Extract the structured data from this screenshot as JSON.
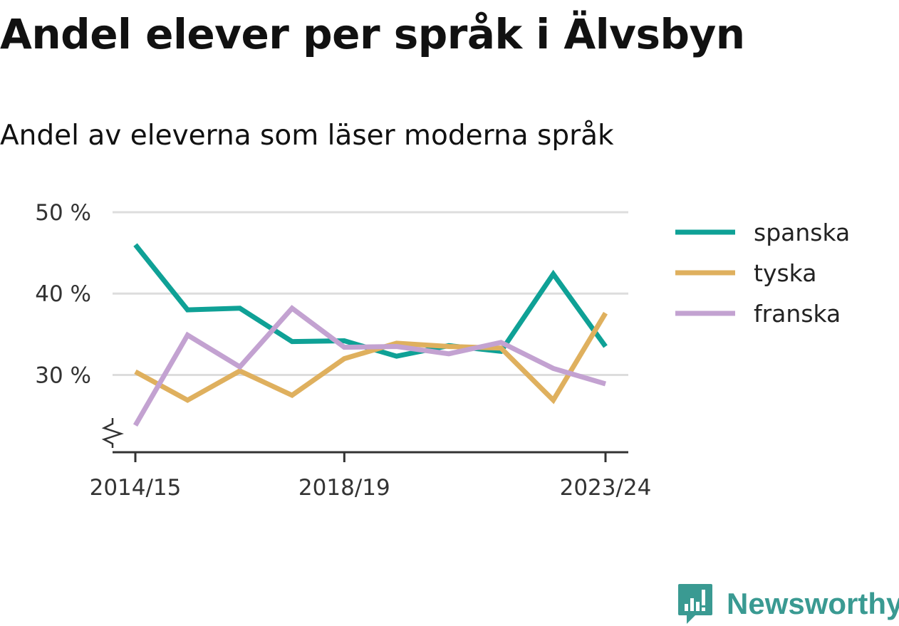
{
  "title": "Andel elever per språk i Älvsbyn",
  "subtitle": "Andel av eleverna som läser moderna språk",
  "brand": {
    "name": "Newsworthy",
    "color": "#3a9a92"
  },
  "chart_data": {
    "type": "line",
    "x": [
      "2014/15",
      "2015/16",
      "2016/17",
      "2017/18",
      "2018/19",
      "2019/20",
      "2020/21",
      "2021/22",
      "2022/23",
      "2023/24"
    ],
    "xticks": [
      "2014/15",
      "2018/19",
      "2023/24"
    ],
    "yticks": [
      {
        "value": 30,
        "label": "30 %"
      },
      {
        "value": 40,
        "label": "40 %"
      },
      {
        "value": 50,
        "label": "50 %"
      }
    ],
    "ylim": [
      20.5,
      50
    ],
    "y_axis_break": true,
    "grid": true,
    "legend_position": "right",
    "series": [
      {
        "name": "spanska",
        "color": "#0fa196",
        "values": [
          46.0,
          38.0,
          38.2,
          34.1,
          34.2,
          32.3,
          33.6,
          32.9,
          42.4,
          33.5
        ]
      },
      {
        "name": "tyska",
        "color": "#dfb05e",
        "values": [
          30.4,
          26.9,
          30.5,
          27.5,
          32.0,
          33.9,
          33.5,
          33.3,
          26.9,
          37.6
        ]
      },
      {
        "name": "franska",
        "color": "#c3a2d1",
        "values": [
          23.8,
          34.9,
          31.0,
          38.2,
          33.4,
          33.5,
          32.6,
          34.0,
          30.8,
          28.9
        ]
      }
    ]
  }
}
